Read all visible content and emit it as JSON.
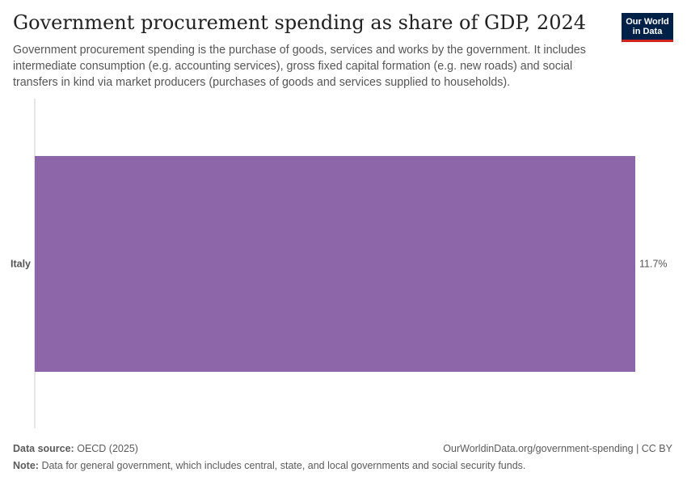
{
  "header": {
    "title": "Government procurement spending as share of GDP, 2024",
    "subtitle": "Government procurement spending is the purchase of goods, services and works by the government. It includes intermediate consumption (e.g. accounting services), gross fixed capital formation (e.g. new roads) and social transfers in kind via market producers (purchases of goods and services supplied to households)."
  },
  "logo": {
    "line1": "Our World",
    "line2": "in Data"
  },
  "chart_data": {
    "type": "bar",
    "orientation": "horizontal",
    "categories": [
      "Italy"
    ],
    "values": [
      11.7
    ],
    "value_labels": [
      "11.7%"
    ],
    "unit": "%",
    "xlim": [
      0,
      11.7
    ],
    "bar_color": "#8c66a8",
    "axis_color": "#dddddd",
    "title": "Government procurement spending as share of GDP, 2024"
  },
  "footer": {
    "source_label": "Data source:",
    "source_value": "OECD (2025)",
    "url": "OurWorldinData.org/government-spending | CC BY",
    "note_label": "Note:",
    "note_value": "Data for general government, which includes central, state, and local governments and social security funds."
  }
}
